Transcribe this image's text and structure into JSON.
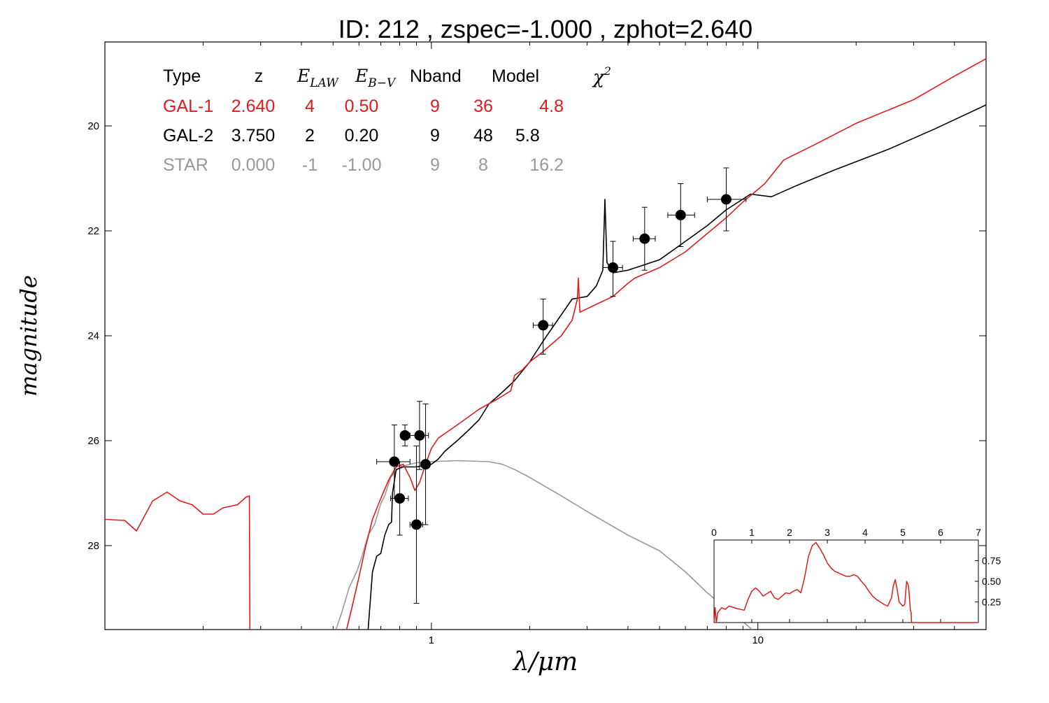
{
  "title": "ID:  212   , zspec=-1.000 , zphot=2.640",
  "chart_data": [
    {
      "type": "line",
      "role": "main_sed",
      "xlabel": "λ/μm",
      "ylabel": "magnitude",
      "x_scale": "log",
      "xlim": [
        0.1,
        50
      ],
      "ylim": [
        29.6,
        18.4
      ],
      "x_ticks": [
        1,
        10
      ],
      "x_tick_labels": [
        "1",
        "10"
      ],
      "y_ticks": [
        20,
        22,
        24,
        26,
        28
      ],
      "y_tick_labels": [
        "20",
        "22",
        "24",
        "26",
        "28"
      ],
      "legend": {
        "placement": "top-left",
        "headers": [
          "Type",
          "z",
          "E_LAW",
          "E_B−V",
          "Nband",
          "Model",
          "χ²"
        ],
        "rows": [
          {
            "type": "GAL-1",
            "z": "2.640",
            "elaw": "4",
            "ebv": "0.50",
            "nband": "9",
            "model": "36",
            "chi2": "4.8",
            "color": "#e31a1c"
          },
          {
            "type": "GAL-2",
            "z": "3.750",
            "elaw": "2",
            "ebv": "0.20",
            "nband": "9",
            "model": "48",
            "chi2": "5.8",
            "color": "#000000"
          },
          {
            "type": "STAR",
            "z": "0.000",
            "elaw": "-1",
            "ebv": "-1.00",
            "nband": "9",
            "model": "8",
            "chi2": "16.2",
            "color": "#999999"
          }
        ]
      },
      "series": [
        {
          "color": "#e31a1c",
          "points": [
            [
              0.1,
              27.5
            ],
            [
              0.115,
              27.52
            ],
            [
              0.125,
              27.72
            ],
            [
              0.14,
              27.15
            ],
            [
              0.155,
              26.98
            ],
            [
              0.17,
              27.15
            ],
            [
              0.185,
              27.22
            ],
            [
              0.2,
              27.4
            ],
            [
              0.215,
              27.4
            ],
            [
              0.23,
              27.28
            ],
            [
              0.255,
              27.22
            ],
            [
              0.27,
              27.08
            ],
            [
              0.277,
              27.05
            ],
            [
              0.278,
              29.6
            ],
            [
              0.55,
              29.6
            ],
            [
              0.57,
              29.2
            ],
            [
              0.6,
              28.6
            ],
            [
              0.63,
              28.0
            ],
            [
              0.66,
              27.5
            ],
            [
              0.7,
              27.1
            ],
            [
              0.74,
              26.75
            ],
            [
              0.78,
              26.5
            ],
            [
              0.82,
              26.45
            ],
            [
              0.86,
              26.7
            ],
            [
              0.89,
              26.95
            ],
            [
              0.92,
              26.8
            ],
            [
              0.96,
              26.45
            ],
            [
              1.0,
              26.15
            ],
            [
              1.05,
              25.95
            ],
            [
              1.2,
              25.7
            ],
            [
              1.4,
              25.4
            ],
            [
              1.6,
              25.2
            ],
            [
              1.75,
              25.05
            ],
            [
              1.8,
              24.75
            ],
            [
              1.9,
              24.65
            ],
            [
              2.0,
              24.5
            ],
            [
              2.2,
              24.3
            ],
            [
              2.5,
              24.0
            ],
            [
              2.7,
              23.7
            ],
            [
              2.8,
              23.3
            ],
            [
              2.82,
              22.9
            ],
            [
              2.85,
              23.55
            ],
            [
              3.2,
              23.4
            ],
            [
              3.6,
              23.25
            ],
            [
              4.0,
              23.0
            ],
            [
              4.2,
              22.9
            ],
            [
              5.0,
              22.7
            ],
            [
              6.0,
              22.4
            ],
            [
              7.0,
              22.05
            ],
            [
              8.0,
              21.75
            ],
            [
              9.0,
              21.45
            ],
            [
              10.5,
              21.1
            ],
            [
              12.0,
              20.65
            ],
            [
              15.0,
              20.35
            ],
            [
              20.0,
              19.95
            ],
            [
              30.0,
              19.5
            ],
            [
              40.0,
              19.05
            ],
            [
              50.0,
              18.72
            ]
          ]
        },
        {
          "color": "#000000",
          "points": [
            [
              0.64,
              29.6
            ],
            [
              0.66,
              28.5
            ],
            [
              0.68,
              28.2
            ],
            [
              0.7,
              28.15
            ],
            [
              0.72,
              27.8
            ],
            [
              0.74,
              27.6
            ],
            [
              0.755,
              27.55
            ],
            [
              0.76,
              27.0
            ],
            [
              0.78,
              26.55
            ],
            [
              0.82,
              26.5
            ],
            [
              0.9,
              26.5
            ],
            [
              1.0,
              26.45
            ],
            [
              1.05,
              26.35
            ],
            [
              1.1,
              26.2
            ],
            [
              1.2,
              26.0
            ],
            [
              1.3,
              25.8
            ],
            [
              1.4,
              25.6
            ],
            [
              1.5,
              25.3
            ],
            [
              1.6,
              25.15
            ],
            [
              1.7,
              25.0
            ],
            [
              1.8,
              24.85
            ],
            [
              2.0,
              24.5
            ],
            [
              2.2,
              24.1
            ],
            [
              2.5,
              23.6
            ],
            [
              2.7,
              23.3
            ],
            [
              3.0,
              23.25
            ],
            [
              3.2,
              23.05
            ],
            [
              3.35,
              22.75
            ],
            [
              3.4,
              21.4
            ],
            [
              3.45,
              22.6
            ],
            [
              3.6,
              22.8
            ],
            [
              4.0,
              22.75
            ],
            [
              5.0,
              22.55
            ],
            [
              6.0,
              22.2
            ],
            [
              7.0,
              21.9
            ],
            [
              8.0,
              21.6
            ],
            [
              9.5,
              21.3
            ],
            [
              11.0,
              21.35
            ],
            [
              13.0,
              21.15
            ],
            [
              17.0,
              20.85
            ],
            [
              25.0,
              20.45
            ],
            [
              35.0,
              20.05
            ],
            [
              50.0,
              19.6
            ]
          ]
        },
        {
          "color": "#999999",
          "points": [
            [
              0.51,
              29.6
            ],
            [
              0.53,
              29.3
            ],
            [
              0.56,
              28.8
            ],
            [
              0.59,
              28.5
            ],
            [
              0.61,
              28.25
            ],
            [
              0.64,
              27.8
            ],
            [
              0.67,
              27.6
            ],
            [
              0.7,
              27.2
            ],
            [
              0.72,
              27.05
            ],
            [
              0.75,
              26.7
            ],
            [
              0.8,
              26.5
            ],
            [
              0.9,
              26.42
            ],
            [
              1.0,
              26.4
            ],
            [
              1.2,
              26.38
            ],
            [
              1.5,
              26.4
            ],
            [
              1.65,
              26.45
            ],
            [
              1.8,
              26.55
            ],
            [
              2.0,
              26.7
            ],
            [
              2.5,
              27.05
            ],
            [
              3.0,
              27.35
            ],
            [
              4.0,
              27.8
            ],
            [
              5.0,
              28.1
            ],
            [
              6.0,
              28.5
            ],
            [
              7.0,
              28.9
            ],
            [
              8.0,
              29.2
            ],
            [
              9.0,
              29.45
            ],
            [
              9.6,
              29.6
            ]
          ]
        }
      ],
      "photometry": [
        {
          "x": 0.77,
          "y": 26.4,
          "xerr": [
            0.68,
            0.86
          ],
          "yerr": [
            25.7,
            27.1
          ]
        },
        {
          "x": 0.8,
          "y": 27.1,
          "xerr": [
            0.75,
            0.85
          ],
          "yerr": [
            26.4,
            27.8
          ]
        },
        {
          "x": 0.83,
          "y": 25.9,
          "xerr": [
            0.81,
            0.86
          ],
          "yerr": [
            25.7,
            26.1
          ]
        },
        {
          "x": 0.9,
          "y": 27.6,
          "xerr": [
            0.86,
            0.94
          ],
          "yerr": [
            26.1,
            29.1
          ]
        },
        {
          "x": 0.92,
          "y": 25.9,
          "xerr": [
            0.86,
            0.98
          ],
          "yerr": [
            25.25,
            26.55
          ]
        },
        {
          "x": 0.96,
          "y": 26.45,
          "xerr": [
            0.95,
            0.97
          ],
          "yerr": [
            25.3,
            27.6
          ]
        },
        {
          "x": 2.2,
          "y": 23.8,
          "xerr": [
            2.05,
            2.35
          ],
          "yerr": [
            23.3,
            24.35
          ]
        },
        {
          "x": 3.6,
          "y": 22.7,
          "xerr": [
            3.35,
            3.85
          ],
          "yerr": [
            22.2,
            23.25
          ]
        },
        {
          "x": 4.5,
          "y": 22.15,
          "xerr": [
            4.15,
            4.85
          ],
          "yerr": [
            21.55,
            22.75
          ]
        },
        {
          "x": 5.8,
          "y": 21.7,
          "xerr": [
            5.3,
            6.4
          ],
          "yerr": [
            21.1,
            22.3
          ]
        },
        {
          "x": 8.0,
          "y": 21.4,
          "xerr": [
            7.0,
            9.2
          ],
          "yerr": [
            20.8,
            22.0
          ]
        }
      ]
    },
    {
      "type": "line",
      "role": "inset_pdz",
      "xlim": [
        0,
        7
      ],
      "ylim": [
        0,
        1.0
      ],
      "x_ticks": [
        0,
        1,
        2,
        3,
        4,
        5,
        6,
        7
      ],
      "x_tick_labels": [
        "0",
        "1",
        "2",
        "3",
        "4",
        "5",
        "6",
        "7"
      ],
      "y_ticks": [
        0.25,
        0.5,
        0.75
      ],
      "y_tick_labels": [
        "0.25",
        "0.50",
        "0.75"
      ],
      "series": [
        {
          "color": "#e31a1c",
          "x": [
            0,
            0.03,
            0.06,
            0.1,
            0.2,
            0.3,
            0.4,
            0.6,
            0.8,
            0.9,
            1.0,
            1.1,
            1.2,
            1.3,
            1.4,
            1.5,
            1.6,
            1.7,
            1.8,
            1.9,
            2.0,
            2.1,
            2.2,
            2.3,
            2.4,
            2.5,
            2.6,
            2.7,
            2.8,
            2.9,
            3.0,
            3.1,
            3.2,
            3.3,
            3.4,
            3.5,
            3.6,
            3.7,
            3.8,
            3.9,
            4.0,
            4.1,
            4.2,
            4.3,
            4.4,
            4.5,
            4.6,
            4.7,
            4.75,
            4.8,
            4.85,
            4.9,
            5.0,
            5.05,
            5.1,
            5.15,
            5.2,
            5.22,
            5.23,
            5.3,
            5.5,
            6.0,
            7.0
          ],
          "y": [
            0.0,
            0.18,
            0.0,
            0.12,
            0.18,
            0.16,
            0.2,
            0.17,
            0.15,
            0.28,
            0.38,
            0.42,
            0.38,
            0.32,
            0.35,
            0.38,
            0.3,
            0.28,
            0.32,
            0.36,
            0.35,
            0.38,
            0.4,
            0.36,
            0.55,
            0.8,
            0.93,
            0.97,
            0.9,
            0.82,
            0.72,
            0.66,
            0.62,
            0.6,
            0.58,
            0.56,
            0.56,
            0.58,
            0.56,
            0.5,
            0.45,
            0.38,
            0.32,
            0.28,
            0.25,
            0.22,
            0.2,
            0.3,
            0.45,
            0.52,
            0.4,
            0.25,
            0.2,
            0.22,
            0.5,
            0.45,
            0.15,
            0.12,
            0.0,
            0.0,
            0.0,
            0.0,
            0.0
          ]
        }
      ]
    }
  ]
}
